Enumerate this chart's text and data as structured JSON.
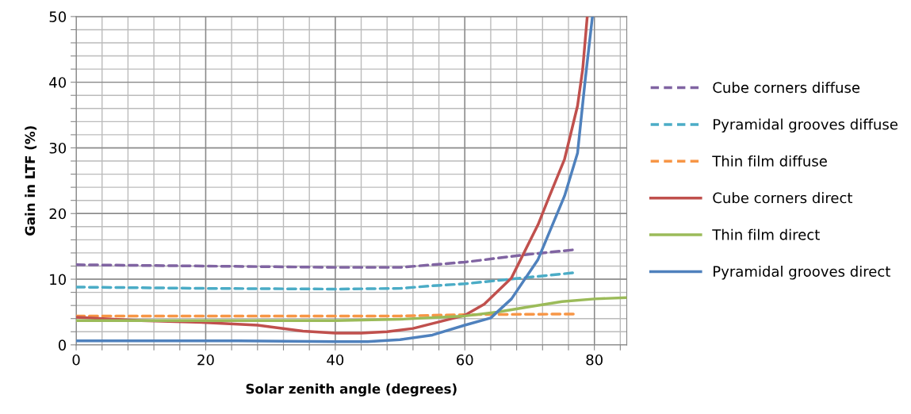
{
  "chart_data": {
    "type": "line",
    "xlabel": "Solar zenith angle (degrees)",
    "ylabel": "Gain in LTF (%)",
    "xlim": [
      0,
      85
    ],
    "ylim": [
      0,
      50
    ],
    "xticks": [
      0,
      {
        "value": 4,
        "label": null
      },
      {
        "value": 8,
        "label": null
      },
      {
        "value": 12,
        "label": null
      },
      {
        "value": 16,
        "label": null
      },
      20,
      {
        "value": 24,
        "label": null
      },
      {
        "value": 28,
        "label": null
      },
      {
        "value": 32,
        "label": null
      },
      {
        "value": 36,
        "label": null
      },
      40,
      {
        "value": 44,
        "label": null
      },
      {
        "value": 48,
        "label": null
      },
      {
        "value": 52,
        "label": null
      },
      {
        "value": 56,
        "label": null
      },
      60,
      {
        "value": 64,
        "label": null
      },
      {
        "value": 68,
        "label": null
      },
      {
        "value": 72,
        "label": null
      },
      {
        "value": 76,
        "label": null
      },
      80,
      {
        "value": 84,
        "label": null
      }
    ],
    "yticks": [
      0,
      {
        "value": 2,
        "label": null
      },
      {
        "value": 4,
        "label": null
      },
      {
        "value": 6,
        "label": null
      },
      {
        "value": 8,
        "label": null
      },
      10,
      {
        "value": 12,
        "label": null
      },
      {
        "value": 14,
        "label": null
      },
      {
        "value": 16,
        "label": null
      },
      {
        "value": 18,
        "label": null
      },
      20,
      {
        "value": 22,
        "label": null
      },
      {
        "value": 24,
        "label": null
      },
      {
        "value": 26,
        "label": null
      },
      {
        "value": 28,
        "label": null
      },
      30,
      {
        "value": 32,
        "label": null
      },
      {
        "value": 34,
        "label": null
      },
      {
        "value": 36,
        "label": null
      },
      {
        "value": 38,
        "label": null
      },
      40,
      {
        "value": 42,
        "label": null
      },
      {
        "value": 44,
        "label": null
      },
      {
        "value": 46,
        "label": null
      },
      {
        "value": 48,
        "label": null
      },
      50
    ],
    "grid": true,
    "legend": "right",
    "marker": "none",
    "series": [
      {
        "name": "Cube corners diffuse",
        "color": "#8064a2",
        "line_style": "dashed",
        "x": [
          0,
          20,
          40,
          50,
          55,
          60,
          65,
          70,
          77
        ],
        "values": [
          12.2,
          12.0,
          11.8,
          11.8,
          12.2,
          12.6,
          13.2,
          13.8,
          14.5
        ]
      },
      {
        "name": "Pyramidal grooves diffuse",
        "color": "#4bacc6",
        "line_style": "dashed",
        "x": [
          0,
          20,
          40,
          50,
          55,
          60,
          65,
          70,
          77
        ],
        "values": [
          8.8,
          8.6,
          8.5,
          8.6,
          9.0,
          9.3,
          9.8,
          10.3,
          11.0
        ]
      },
      {
        "name": "Thin film diffuse",
        "color": "#f79646",
        "line_style": "dashed",
        "x": [
          0,
          20,
          40,
          50,
          55,
          60,
          77
        ],
        "values": [
          4.4,
          4.4,
          4.4,
          4.4,
          4.5,
          4.6,
          4.7
        ]
      },
      {
        "name": "Cube corners direct",
        "color": "#c0504d",
        "line_style": "solid",
        "x": [
          0,
          10,
          20,
          28,
          35,
          40,
          44,
          48,
          52,
          56,
          60,
          63,
          67.2,
          71.3,
          73,
          75.4,
          77.4,
          78.2,
          78.9
        ],
        "values": [
          4.2,
          3.7,
          3.4,
          3.0,
          2.1,
          1.8,
          1.8,
          2.0,
          2.5,
          3.5,
          4.5,
          6.2,
          10.2,
          18.3,
          22.5,
          28.3,
          36.4,
          42.0,
          50
        ]
      },
      {
        "name": "Thin film direct",
        "color": "#9bbb59",
        "line_style": "solid",
        "x": [
          0,
          20,
          40,
          50,
          60,
          65,
          70,
          75,
          80,
          85
        ],
        "values": [
          3.7,
          3.7,
          3.7,
          3.9,
          4.4,
          5.0,
          5.8,
          6.6,
          7.0,
          7.2
        ]
      },
      {
        "name": "Pyramidal grooves direct",
        "color": "#4f81bd",
        "line_style": "solid",
        "x": [
          0,
          25,
          40,
          45,
          50,
          55,
          60,
          64,
          67.2,
          71.3,
          75.4,
          77.4,
          78.6,
          79.7
        ],
        "values": [
          0.6,
          0.6,
          0.5,
          0.5,
          0.8,
          1.5,
          3.0,
          4.1,
          7.0,
          13.0,
          22.7,
          29.2,
          40.5,
          50
        ]
      }
    ]
  }
}
